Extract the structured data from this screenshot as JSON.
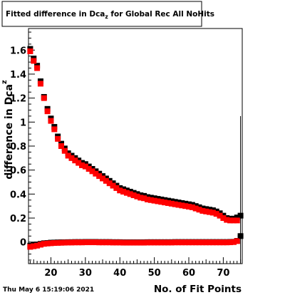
{
  "chart_data": {
    "type": "scatter",
    "title": "Fitted difference in Dca",
    "title_sub": "z",
    "title_rest": " for Global Rec All NoHits",
    "xlabel": "No. of Fit Points",
    "ylabel_main": "difference in Dca",
    "ylabel_sub": "z",
    "xlim": [
      13.5,
      75.5
    ],
    "ylim": [
      -0.18,
      1.78
    ],
    "xticks": [
      20,
      30,
      40,
      50,
      60,
      70
    ],
    "yticks": [
      0,
      0.2,
      0.4,
      0.6,
      0.8,
      1,
      1.2,
      1.4,
      1.6
    ],
    "ytick_labels": [
      "0",
      "0.2",
      "0.4",
      "0.6",
      "0.8",
      "1",
      "1.2",
      "1.4",
      "1.6"
    ],
    "grid": false,
    "timestamp": "Thu May  6 15:19:06 2021",
    "series": [
      {
        "marker": "square",
        "color": "#000000",
        "x": [
          14,
          15,
          16,
          17,
          18,
          19,
          20,
          21,
          22,
          23,
          24,
          25,
          26,
          27,
          28,
          29,
          30,
          31,
          32,
          33,
          34,
          35,
          36,
          37,
          38,
          39,
          40,
          41,
          42,
          43,
          44,
          45,
          46,
          47,
          48,
          49,
          50,
          51,
          52,
          53,
          54,
          55,
          56,
          57,
          58,
          59,
          60,
          61,
          62,
          63,
          64,
          65,
          66,
          67,
          68,
          69,
          70,
          71,
          72,
          73,
          74,
          75
        ],
        "y": [
          1.61,
          1.53,
          1.47,
          1.34,
          1.21,
          1.11,
          1.03,
          0.96,
          0.88,
          0.82,
          0.78,
          0.74,
          0.72,
          0.7,
          0.68,
          0.66,
          0.65,
          0.63,
          0.61,
          0.59,
          0.57,
          0.55,
          0.53,
          0.51,
          0.49,
          0.47,
          0.45,
          0.44,
          0.43,
          0.42,
          0.41,
          0.4,
          0.39,
          0.385,
          0.375,
          0.37,
          0.365,
          0.36,
          0.355,
          0.35,
          0.345,
          0.34,
          0.335,
          0.33,
          0.325,
          0.32,
          0.315,
          0.31,
          0.3,
          0.29,
          0.28,
          0.275,
          0.27,
          0.265,
          0.255,
          0.24,
          0.22,
          0.2,
          0.195,
          0.195,
          0.205,
          0.22
        ]
      },
      {
        "marker": "square",
        "color": "#ff0000",
        "x": [
          14,
          15,
          16,
          17,
          18,
          19,
          20,
          21,
          22,
          23,
          24,
          25,
          26,
          27,
          28,
          29,
          30,
          31,
          32,
          33,
          34,
          35,
          36,
          37,
          38,
          39,
          40,
          41,
          42,
          43,
          44,
          45,
          46,
          47,
          48,
          49,
          50,
          51,
          52,
          53,
          54,
          55,
          56,
          57,
          58,
          59,
          60,
          61,
          62,
          63,
          64,
          65,
          66,
          67,
          68,
          69,
          70,
          71,
          72,
          73,
          74
        ],
        "y": [
          1.59,
          1.51,
          1.45,
          1.32,
          1.2,
          1.09,
          1.01,
          0.94,
          0.86,
          0.8,
          0.76,
          0.72,
          0.7,
          0.68,
          0.66,
          0.64,
          0.63,
          0.61,
          0.59,
          0.57,
          0.55,
          0.53,
          0.51,
          0.49,
          0.47,
          0.45,
          0.43,
          0.42,
          0.41,
          0.4,
          0.39,
          0.38,
          0.37,
          0.365,
          0.355,
          0.35,
          0.345,
          0.34,
          0.335,
          0.33,
          0.325,
          0.32,
          0.315,
          0.31,
          0.305,
          0.3,
          0.295,
          0.29,
          0.28,
          0.27,
          0.26,
          0.255,
          0.25,
          0.245,
          0.235,
          0.22,
          0.2,
          0.185,
          0.18,
          0.18,
          0.18
        ]
      },
      {
        "marker": "square",
        "color": "#000000",
        "x": [
          14,
          15,
          16,
          17,
          18,
          19,
          20,
          21,
          22,
          23,
          24,
          25,
          26,
          27,
          28,
          29,
          30,
          31,
          32,
          33,
          34,
          35,
          36,
          37,
          38,
          39,
          40,
          41,
          42,
          43,
          44,
          45,
          46,
          47,
          48,
          49,
          50,
          51,
          52,
          53,
          54,
          55,
          56,
          57,
          58,
          59,
          60,
          61,
          62,
          63,
          64,
          65,
          66,
          67,
          68,
          69,
          70,
          71,
          72,
          73,
          74,
          75
        ],
        "y": [
          -0.03,
          -0.025,
          -0.02,
          -0.015,
          -0.01,
          -0.008,
          -0.005,
          -0.004,
          -0.003,
          -0.002,
          -0.002,
          -0.001,
          -0.001,
          0.0,
          0.0,
          0.0,
          0.001,
          0.001,
          0.001,
          0.001,
          0.0,
          0.0,
          0.0,
          0.0,
          -0.001,
          -0.001,
          -0.001,
          -0.002,
          -0.002,
          -0.002,
          -0.002,
          -0.002,
          -0.002,
          -0.002,
          -0.001,
          -0.001,
          -0.001,
          -0.001,
          -0.001,
          -0.001,
          -0.001,
          -0.001,
          0.0,
          0.0,
          0.0,
          0.0,
          0.0,
          0.0,
          0.0,
          0.0,
          0.0,
          0.0,
          0.0,
          0.0,
          0.0,
          0.0,
          0.0,
          0.0,
          0.001,
          0.002,
          0.01,
          0.05
        ]
      },
      {
        "marker": "square",
        "color": "#ff0000",
        "x": [
          14,
          15,
          16,
          17,
          18,
          19,
          20,
          21,
          22,
          23,
          24,
          25,
          26,
          27,
          28,
          29,
          30,
          31,
          32,
          33,
          34,
          35,
          36,
          37,
          38,
          39,
          40,
          41,
          42,
          43,
          44,
          45,
          46,
          47,
          48,
          49,
          50,
          51,
          52,
          53,
          54,
          55,
          56,
          57,
          58,
          59,
          60,
          61,
          62,
          63,
          64,
          65,
          66,
          67,
          68,
          69,
          70,
          71,
          72,
          73,
          74
        ],
        "y": [
          -0.04,
          -0.035,
          -0.03,
          -0.022,
          -0.015,
          -0.012,
          -0.01,
          -0.008,
          -0.007,
          -0.006,
          -0.005,
          -0.004,
          -0.004,
          -0.003,
          -0.003,
          -0.003,
          -0.002,
          -0.002,
          -0.002,
          -0.002,
          -0.003,
          -0.003,
          -0.003,
          -0.003,
          -0.004,
          -0.004,
          -0.004,
          -0.005,
          -0.005,
          -0.005,
          -0.005,
          -0.005,
          -0.005,
          -0.005,
          -0.004,
          -0.004,
          -0.004,
          -0.004,
          -0.004,
          -0.004,
          -0.004,
          -0.004,
          -0.003,
          -0.003,
          -0.003,
          -0.003,
          -0.003,
          -0.003,
          -0.003,
          -0.003,
          -0.003,
          -0.003,
          -0.003,
          -0.003,
          -0.003,
          -0.003,
          -0.003,
          -0.003,
          -0.002,
          0.0,
          0.008
        ]
      }
    ]
  }
}
